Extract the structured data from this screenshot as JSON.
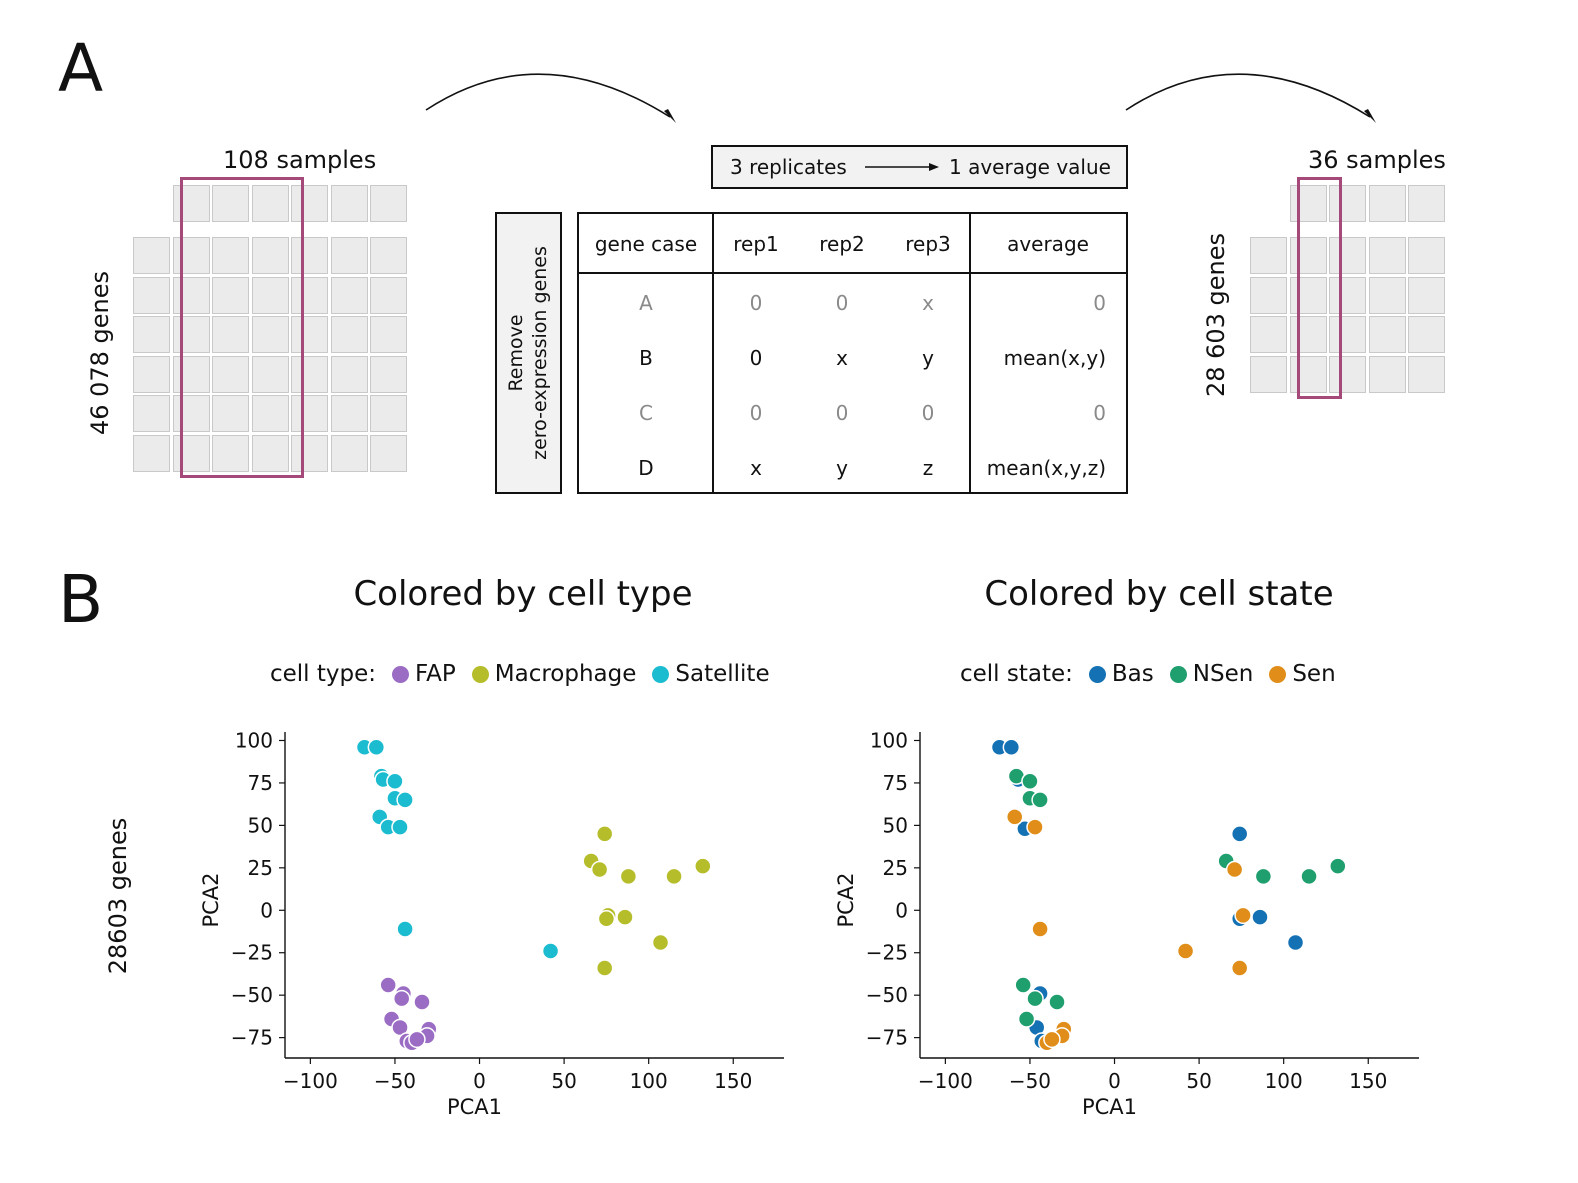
{
  "panel_a": {
    "letter": "A",
    "left_matrix": {
      "samples_label": "108 samples",
      "genes_label": "46 078 genes"
    },
    "right_matrix": {
      "samples_label": "36 samples",
      "genes_label": "28 603 genes"
    },
    "replicates_box": {
      "left": "3 replicates",
      "right": "1 average value"
    },
    "side_label": {
      "line1": "Remove",
      "line2": "zero-expression genes"
    },
    "table": {
      "headers": [
        "gene case",
        "rep1",
        "rep2",
        "rep3",
        "average"
      ],
      "rows": [
        {
          "case": "A",
          "rep1": "0",
          "rep2": "0",
          "rep3": "x",
          "average": "0",
          "grey": true
        },
        {
          "case": "B",
          "rep1": "0",
          "rep2": "x",
          "rep3": "y",
          "average": "mean(x,y)",
          "grey": false
        },
        {
          "case": "C",
          "rep1": "0",
          "rep2": "0",
          "rep3": "0",
          "average": "0",
          "grey": true
        },
        {
          "case": "D",
          "rep1": "x",
          "rep2": "y",
          "rep3": "z",
          "average": "mean(x,y,z)",
          "grey": false
        }
      ]
    },
    "highlight_color": "#a4497a"
  },
  "panel_b": {
    "letter": "B",
    "row_label": "28603 genes"
  },
  "chart_data": [
    {
      "type": "scatter",
      "title": "Colored by cell type",
      "legend_title": "cell type:",
      "xlabel": "PCA1",
      "ylabel": "PCA2",
      "xlim": [
        -115,
        180
      ],
      "ylim": [
        -87,
        105
      ],
      "xticks": [
        -100,
        -50,
        0,
        50,
        100,
        150
      ],
      "yticks": [
        100,
        75,
        50,
        25,
        0,
        -25,
        -50,
        -75
      ],
      "tick_labels_x": [
        "−100",
        "−50",
        "0",
        "50",
        "100",
        "150"
      ],
      "tick_labels_y": [
        "100",
        "75",
        "50",
        "25",
        "0",
        "−25",
        "−50",
        "−75"
      ],
      "series": [
        {
          "name": "FAP",
          "color": "#9b6cc4",
          "points": [
            [
              -54,
              -44
            ],
            [
              -45,
              -49
            ],
            [
              -46,
              -52
            ],
            [
              -34,
              -54
            ],
            [
              -52,
              -64
            ],
            [
              -47,
              -69
            ],
            [
              -30,
              -70
            ],
            [
              -31,
              -74
            ],
            [
              -43,
              -77
            ],
            [
              -40,
              -78
            ],
            [
              -37,
              -76
            ]
          ]
        },
        {
          "name": "Macrophage",
          "color": "#b5bd2a",
          "points": [
            [
              74,
              45
            ],
            [
              66,
              29
            ],
            [
              71,
              24
            ],
            [
              88,
              20
            ],
            [
              115,
              20
            ],
            [
              132,
              26
            ],
            [
              76,
              -3
            ],
            [
              75,
              -5
            ],
            [
              86,
              -4
            ],
            [
              107,
              -19
            ],
            [
              74,
              -34
            ]
          ]
        },
        {
          "name": "Satellite",
          "color": "#1bbcd0",
          "points": [
            [
              -68,
              96
            ],
            [
              -61,
              96
            ],
            [
              -58,
              79
            ],
            [
              -57,
              77
            ],
            [
              -50,
              76
            ],
            [
              -50,
              66
            ],
            [
              -44,
              65
            ],
            [
              -59,
              55
            ],
            [
              -54,
              49
            ],
            [
              -47,
              49
            ],
            [
              -44,
              -11
            ],
            [
              42,
              -24
            ]
          ]
        }
      ]
    },
    {
      "type": "scatter",
      "title": "Colored by cell state",
      "legend_title": "cell state:",
      "xlabel": "PCA1",
      "ylabel": "PCA2",
      "xlim": [
        -115,
        180
      ],
      "ylim": [
        -87,
        105
      ],
      "xticks": [
        -100,
        -50,
        0,
        50,
        100,
        150
      ],
      "yticks": [
        100,
        75,
        50,
        25,
        0,
        -25,
        -50,
        -75
      ],
      "tick_labels_x": [
        "−100",
        "−50",
        "0",
        "50",
        "100",
        "150"
      ],
      "tick_labels_y": [
        "100",
        "75",
        "50",
        "25",
        "0",
        "−25",
        "−50",
        "−75"
      ],
      "series": [
        {
          "name": "Bas",
          "color": "#1471b3",
          "points": [
            [
              -68,
              96
            ],
            [
              -61,
              96
            ],
            [
              -57,
              77
            ],
            [
              -53,
              48
            ],
            [
              74,
              45
            ],
            [
              74,
              -5
            ],
            [
              86,
              -4
            ],
            [
              107,
              -19
            ],
            [
              -44,
              -49
            ],
            [
              -46,
              -69
            ],
            [
              -43,
              -77
            ]
          ]
        },
        {
          "name": "NSen",
          "color": "#1f9e6e",
          "points": [
            [
              -58,
              79
            ],
            [
              -50,
              76
            ],
            [
              -50,
              66
            ],
            [
              -44,
              65
            ],
            [
              66,
              29
            ],
            [
              88,
              20
            ],
            [
              115,
              20
            ],
            [
              132,
              26
            ],
            [
              -54,
              -44
            ],
            [
              -47,
              -52
            ],
            [
              -34,
              -54
            ],
            [
              -52,
              -64
            ]
          ]
        },
        {
          "name": "Sen",
          "color": "#e08e19",
          "points": [
            [
              -59,
              55
            ],
            [
              -47,
              49
            ],
            [
              71,
              24
            ],
            [
              76,
              -3
            ],
            [
              74,
              -34
            ],
            [
              42,
              -24
            ],
            [
              -44,
              -11
            ],
            [
              -30,
              -70
            ],
            [
              -31,
              -74
            ],
            [
              -40,
              -78
            ],
            [
              -37,
              -76
            ]
          ]
        }
      ]
    }
  ]
}
